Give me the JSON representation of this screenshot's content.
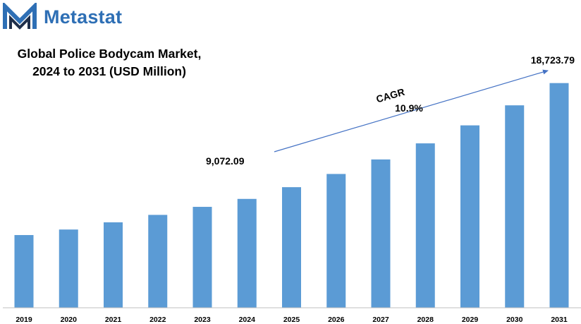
{
  "brand": {
    "name": "Metastat",
    "logo_icon": "metastat-m-logo-icon",
    "colors": {
      "primary": "#2e6fb5",
      "dark": "#1f2f4a"
    }
  },
  "chart_data": {
    "type": "bar",
    "title_line1": "Global Police Bodycam Market,",
    "title_line2": "2024 to 2031 (USD Million)",
    "categories": [
      "2019",
      "2020",
      "2021",
      "2022",
      "2023",
      "2024",
      "2025",
      "2026",
      "2027",
      "2028",
      "2029",
      "2030",
      "2031"
    ],
    "values": [
      6060,
      6520,
      7120,
      7740,
      8410,
      9072.09,
      10050,
      11150,
      12360,
      13700,
      15200,
      16870,
      18723.79
    ],
    "data_labels": [
      {
        "category": "2024",
        "text": "9,072.09"
      },
      {
        "category": "2031",
        "text": "18,723.79"
      }
    ],
    "annotation": {
      "label": "CAGR",
      "value": "10.9%",
      "from": "2024",
      "to": "2031"
    },
    "bar_color": "#5b9bd5",
    "axis_color": "#bfbfbf",
    "ylim": [
      0,
      20000
    ],
    "y_axis_visible": false,
    "grid": false,
    "legend": "none",
    "xlabel": "",
    "ylabel": ""
  }
}
